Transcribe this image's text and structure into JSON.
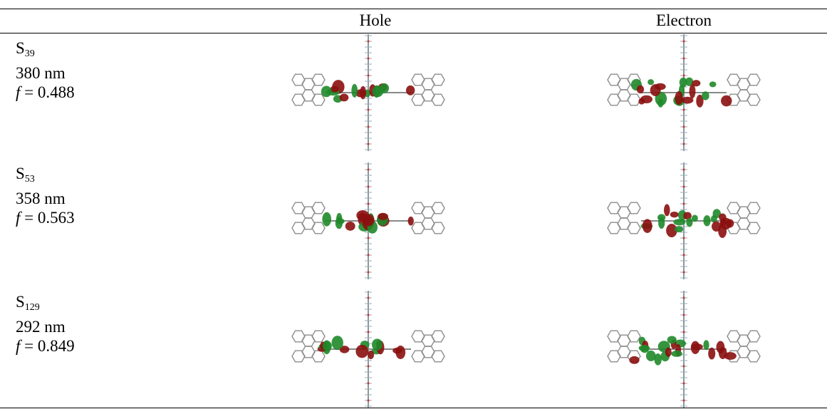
{
  "table": {
    "header": [
      "Hole",
      "Electron"
    ],
    "rows": [
      {
        "state": {
          "letter": "S",
          "subscript": "39"
        },
        "wavelength": "380 nm",
        "oscillator": {
          "symbol": "f",
          "text": "= 0.488"
        }
      },
      {
        "state": {
          "letter": "S",
          "subscript": "53"
        },
        "wavelength": "358 nm",
        "oscillator": {
          "symbol": "f",
          "text": "= 0.563"
        }
      },
      {
        "state": {
          "letter": "S",
          "subscript": "129"
        },
        "wavelength": "292 nm",
        "oscillator": {
          "symbol": "f",
          "text": "= 0.849"
        }
      }
    ]
  }
}
